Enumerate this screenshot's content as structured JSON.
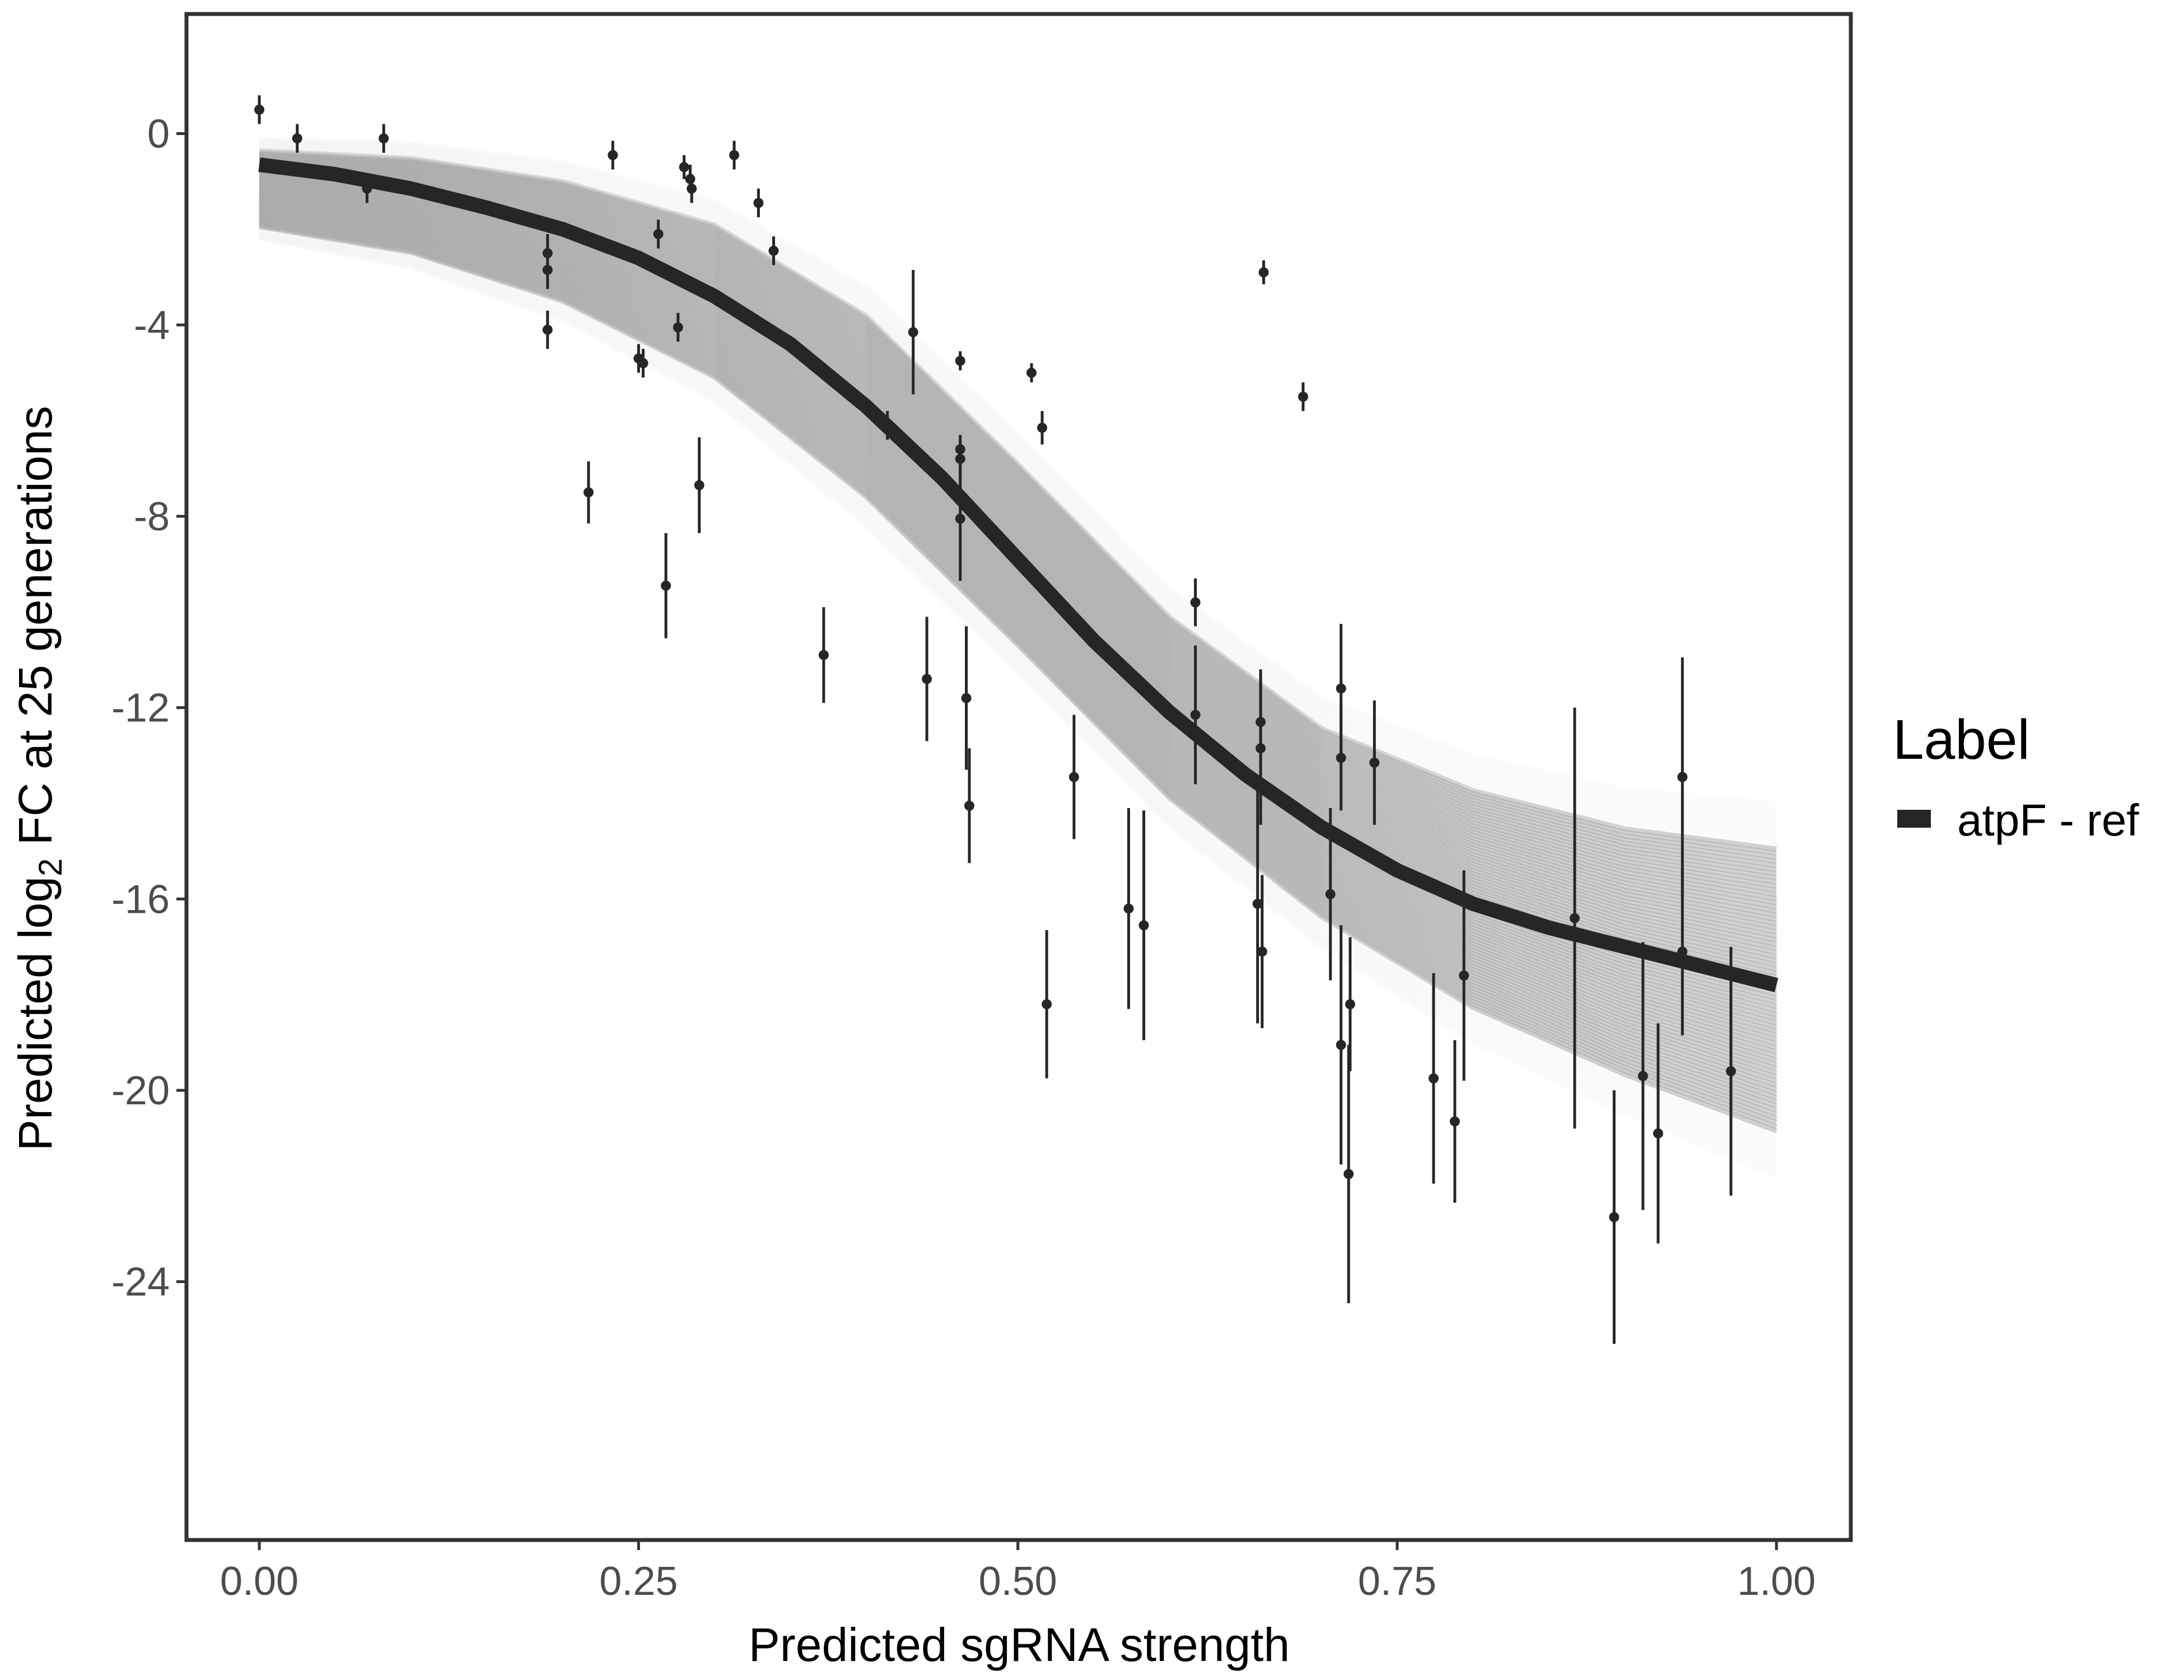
{
  "chart_data": {
    "type": "scatter",
    "xlabel": "Predicted sgRNA strength",
    "ylabel": {
      "prefix": "Predicted  log",
      "subscript": "2",
      "suffix": " FC at 25 generations"
    },
    "xlim": [
      -0.048,
      1.049
    ],
    "ylim": [
      -29.4,
      2.5
    ],
    "x_ticks": [
      "0.00",
      "0.25",
      "0.50",
      "0.75",
      "1.00"
    ],
    "x_tick_values": [
      0,
      0.25,
      0.5,
      0.75,
      1.0
    ],
    "y_ticks": [
      "0",
      "-4",
      "-8",
      "-12",
      "-16",
      "-20",
      "-24"
    ],
    "y_tick_values": [
      0,
      -4,
      -8,
      -12,
      -16,
      -20,
      -24
    ],
    "grid": false,
    "legend": {
      "title": "Label",
      "position": "right",
      "entries": [
        {
          "label": "atpF - ref",
          "color": "#262626"
        }
      ]
    },
    "colors": {
      "points": "#262626",
      "fit": "#262626",
      "band": "#aaaaaa",
      "band_edge": "#efefef",
      "frame": "#333333"
    },
    "fit_curve": {
      "x": [
        0,
        0.05,
        0.1,
        0.15,
        0.2,
        0.25,
        0.3,
        0.35,
        0.4,
        0.45,
        0.5,
        0.55,
        0.6,
        0.65,
        0.7,
        0.75,
        0.8,
        0.85,
        0.9,
        0.95,
        1.0
      ],
      "y": [
        -0.65,
        -0.85,
        -1.15,
        -1.55,
        -2.0,
        -2.6,
        -3.4,
        -4.4,
        -5.7,
        -7.2,
        -8.9,
        -10.6,
        -12.1,
        -13.4,
        -14.5,
        -15.4,
        -16.1,
        -16.6,
        -17.0,
        -17.4,
        -17.8
      ]
    },
    "posterior_band": {
      "x": [
        0,
        0.1,
        0.2,
        0.3,
        0.4,
        0.5,
        0.6,
        0.7,
        0.8,
        0.9,
        1.0
      ],
      "upper": [
        -0.1,
        -0.2,
        -0.6,
        -1.4,
        -3.2,
        -6.3,
        -9.5,
        -11.8,
        -13.0,
        -13.7,
        -14.0
      ],
      "lower": [
        -2.2,
        -2.8,
        -3.9,
        -5.6,
        -8.2,
        -11.3,
        -14.5,
        -17.0,
        -19.0,
        -20.5,
        -21.8
      ]
    },
    "points": [
      {
        "x": 0.0,
        "y": 0.5,
        "err": 0.3
      },
      {
        "x": 0.025,
        "y": -0.1,
        "err": 0.3
      },
      {
        "x": 0.071,
        "y": -1.15,
        "err": 0.3
      },
      {
        "x": 0.082,
        "y": -0.1,
        "err": 0.3
      },
      {
        "x": 0.19,
        "y": -2.5,
        "err": 0.4
      },
      {
        "x": 0.19,
        "y": -2.85,
        "err": 0.4
      },
      {
        "x": 0.19,
        "y": -4.1,
        "err": 0.4
      },
      {
        "x": 0.217,
        "y": -7.5,
        "err": 0.65
      },
      {
        "x": 0.233,
        "y": -0.45,
        "err": 0.3
      },
      {
        "x": 0.25,
        "y": -4.7,
        "err": 0.3
      },
      {
        "x": 0.253,
        "y": -4.8,
        "err": 0.3
      },
      {
        "x": 0.263,
        "y": -2.1,
        "err": 0.3
      },
      {
        "x": 0.268,
        "y": -9.45,
        "err": 1.1
      },
      {
        "x": 0.276,
        "y": -4.05,
        "err": 0.3
      },
      {
        "x": 0.28,
        "y": -0.7,
        "err": 0.25
      },
      {
        "x": 0.284,
        "y": -0.95,
        "err": 0.3
      },
      {
        "x": 0.285,
        "y": -1.15,
        "err": 0.3
      },
      {
        "x": 0.29,
        "y": -7.35,
        "err": 1.0
      },
      {
        "x": 0.313,
        "y": -0.45,
        "err": 0.3
      },
      {
        "x": 0.329,
        "y": -1.45,
        "err": 0.3
      },
      {
        "x": 0.339,
        "y": -2.45,
        "err": 0.3
      },
      {
        "x": 0.372,
        "y": -10.9,
        "err": 1.0
      },
      {
        "x": 0.414,
        "y": -6.1,
        "err": 0.3
      },
      {
        "x": 0.431,
        "y": -4.15,
        "err": 1.3
      },
      {
        "x": 0.44,
        "y": -11.4,
        "err": 1.3
      },
      {
        "x": 0.462,
        "y": -4.75,
        "err": 0.2
      },
      {
        "x": 0.462,
        "y": -6.6,
        "err": 0.3
      },
      {
        "x": 0.462,
        "y": -6.8,
        "err": 0.4
      },
      {
        "x": 0.462,
        "y": -8.05,
        "err": 1.3
      },
      {
        "x": 0.466,
        "y": -11.8,
        "err": 1.5
      },
      {
        "x": 0.468,
        "y": -14.05,
        "err": 1.2
      },
      {
        "x": 0.509,
        "y": -5.0,
        "err": 0.2
      },
      {
        "x": 0.516,
        "y": -6.15,
        "err": 0.35
      },
      {
        "x": 0.519,
        "y": -18.2,
        "err": 1.55
      },
      {
        "x": 0.537,
        "y": -13.45,
        "err": 1.3
      },
      {
        "x": 0.573,
        "y": -16.2,
        "err": 2.1
      },
      {
        "x": 0.583,
        "y": -16.55,
        "err": 2.4
      },
      {
        "x": 0.617,
        "y": -9.8,
        "err": 0.5
      },
      {
        "x": 0.617,
        "y": -12.15,
        "err": 1.45
      },
      {
        "x": 0.66,
        "y": -12.3,
        "err": 1.1
      },
      {
        "x": 0.66,
        "y": -12.85,
        "err": 1.6
      },
      {
        "x": 0.658,
        "y": -16.1,
        "err": 2.5
      },
      {
        "x": 0.661,
        "y": -17.1,
        "err": 1.6
      },
      {
        "x": 0.662,
        "y": -2.9,
        "err": 0.25
      },
      {
        "x": 0.688,
        "y": -5.5,
        "err": 0.3
      },
      {
        "x": 0.706,
        "y": -15.9,
        "err": 1.8
      },
      {
        "x": 0.713,
        "y": -11.6,
        "err": 1.35
      },
      {
        "x": 0.713,
        "y": -13.05,
        "err": 1.1
      },
      {
        "x": 0.713,
        "y": -19.05,
        "err": 2.5
      },
      {
        "x": 0.719,
        "y": -18.2,
        "err": 1.4
      },
      {
        "x": 0.718,
        "y": -21.75,
        "err": 2.7
      },
      {
        "x": 0.735,
        "y": -13.15,
        "err": 1.3
      },
      {
        "x": 0.774,
        "y": -19.75,
        "err": 2.2
      },
      {
        "x": 0.788,
        "y": -20.65,
        "err": 1.7
      },
      {
        "x": 0.794,
        "y": -17.6,
        "err": 2.2
      },
      {
        "x": 0.867,
        "y": -16.4,
        "err": 4.4
      },
      {
        "x": 0.893,
        "y": -22.65,
        "err": 2.65
      },
      {
        "x": 0.912,
        "y": -19.7,
        "err": 2.8
      },
      {
        "x": 0.922,
        "y": -20.9,
        "err": 2.3
      },
      {
        "x": 0.938,
        "y": -13.45,
        "err": 2.5
      },
      {
        "x": 0.938,
        "y": -17.1,
        "err": 1.75
      },
      {
        "x": 0.97,
        "y": -19.6,
        "err": 2.6
      }
    ]
  }
}
